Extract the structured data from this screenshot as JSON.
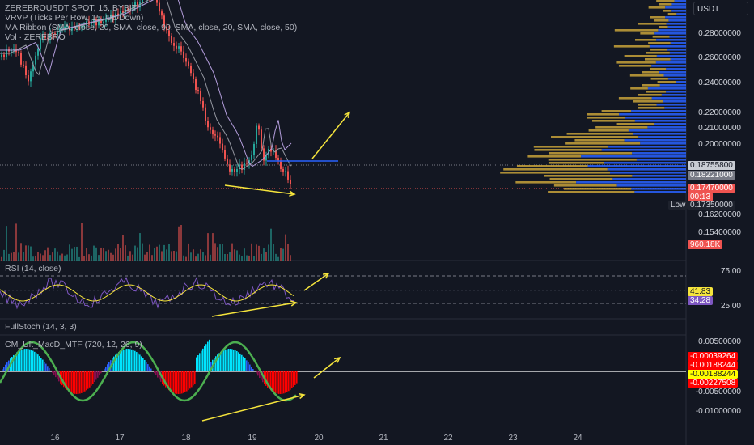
{
  "symbol_title": "ZEREBROUSDT SPOT, 15, BYBIT",
  "indicators": [
    "VRVP (Ticks Per Row, 15, Up/Down)",
    "MA Ribbon (SMA, close, 20, SMA, close, 90, SMA, close, 20, SMA, close, 50)",
    "Vol · ZEREBRO"
  ],
  "currency": "USDT",
  "price_axis": [
    "0.28000000",
    "0.26000000",
    "0.24000000",
    "0.22000000",
    "0.21000000",
    "0.20000000",
    "0.18755800",
    "0.18221000",
    "0.17470000",
    "0.17350000",
    "0.16200000",
    "0.15400000"
  ],
  "price_tags": {
    "poc": "0.18755800",
    "ma": "0.18221000",
    "last": "0.17470000",
    "countdown": "00:13",
    "low_label": "Low",
    "low": "0.17350000",
    "volume": "960.18K"
  },
  "rsi": {
    "label": "RSI (14, close)",
    "levels": [
      "75.00",
      "25.00"
    ],
    "value_ma": "41.83",
    "value": "34.28"
  },
  "stoch_label": "FullStoch (14, 3, 3)",
  "macd": {
    "label": "CM_Ult_MacD_MTF (720, 12, 26, 9)",
    "axis": [
      "0.00500000",
      "-0.00500000",
      "-0.01000000"
    ],
    "tags": [
      "-0.00039264",
      "-0.00188244",
      "-0.00188244",
      "-0.00227508"
    ]
  },
  "time_axis": [
    "16",
    "17",
    "18",
    "19",
    "20",
    "21",
    "22",
    "23",
    "24"
  ],
  "colors": {
    "background": "#131722",
    "up": "#26a69a",
    "down": "#ef5350",
    "vp_up": "#2962ff",
    "vp_down": "#c8a23a",
    "annotation": "#f5e43c"
  }
}
